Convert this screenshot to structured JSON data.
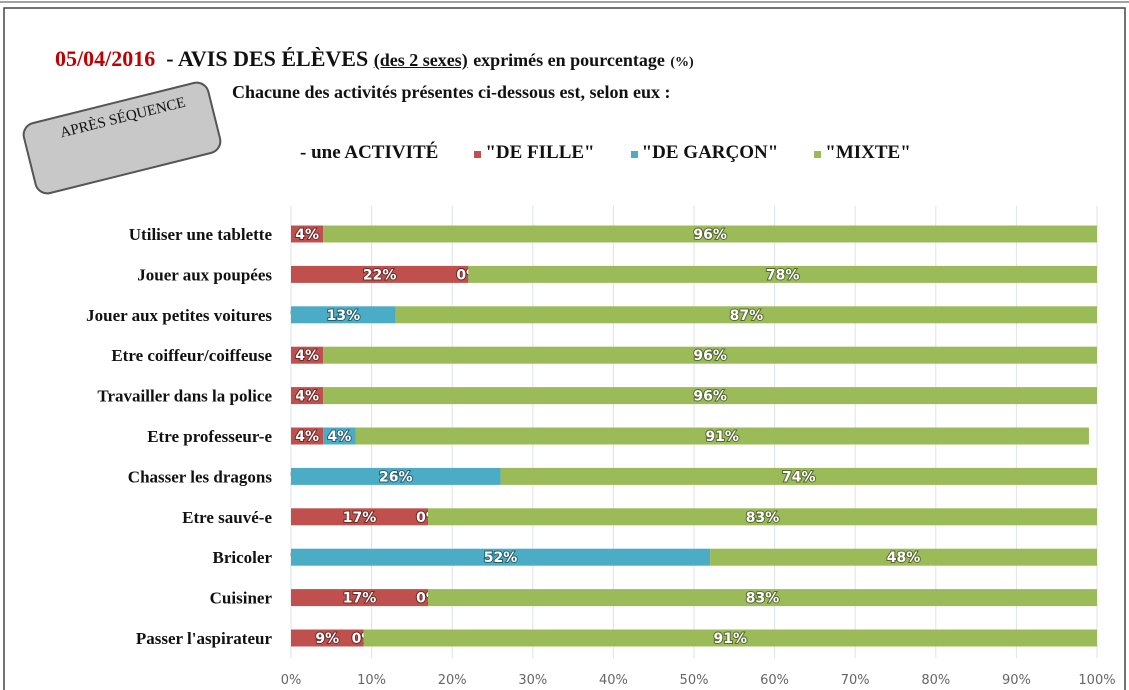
{
  "badge": "APRÈS SÉQUENCE",
  "chart_data": {
    "type": "stacked-barh",
    "title_date": "05/04/2016",
    "title": "- AVIS DES ÉLÈVES",
    "title_paren": "(des 2 sexes)",
    "title_rest": "exprimés en pourcentage",
    "title_unit": "(%)",
    "subtitle": "Chacune des activités présentes ci-dessous est, selon eux :",
    "legend_lead": "- une ACTIVITÉ",
    "categories": [
      "Utiliser une tablette",
      "Jouer aux poupées",
      "Jouer aux petites voitures",
      "Etre coiffeur/coiffeuse",
      "Travailler dans la police",
      "Etre professeur-e",
      "Chasser les dragons",
      "Etre sauvé-e",
      "Bricoler",
      "Cuisiner",
      "Passer l'aspirateur"
    ],
    "series": [
      {
        "name": "\"DE FILLE\"",
        "color": "#c0504d",
        "values": [
          4,
          22,
          0,
          4,
          4,
          4,
          0,
          17,
          0,
          17,
          9
        ],
        "value_labels": [
          "4%",
          "22%",
          "%",
          "4%",
          "4%",
          "4%",
          "%",
          "17%",
          "%",
          "17%",
          "9%"
        ]
      },
      {
        "name": "\"DE GARÇON\"",
        "color": "#4bacc6",
        "values": [
          0,
          0,
          13,
          0,
          0,
          4,
          26,
          0,
          52,
          0,
          0
        ],
        "value_labels": [
          null,
          "0%",
          "13%",
          null,
          null,
          "4%",
          "26%",
          "0%",
          "52%",
          "0%",
          "0%"
        ]
      },
      {
        "name": "\"MIXTE\"",
        "color": "#9bbb59",
        "values": [
          96,
          78,
          87,
          96,
          96,
          91,
          74,
          83,
          48,
          83,
          91
        ],
        "value_labels": [
          "96%",
          "78%",
          "87%",
          "96%",
          "96%",
          "91%",
          "74%",
          "83%",
          "48%",
          "83%",
          "91%"
        ]
      }
    ],
    "xlim": [
      0,
      100
    ],
    "xticks": [
      {
        "value": 0,
        "label": "0%"
      },
      {
        "value": 10,
        "label": "10%"
      },
      {
        "value": 20,
        "label": "20%"
      },
      {
        "value": 30,
        "label": "30%"
      },
      {
        "value": 40,
        "label": "40%"
      },
      {
        "value": 50,
        "label": "50%"
      },
      {
        "value": 60,
        "label": "60%"
      },
      {
        "value": 70,
        "label": "70%"
      },
      {
        "value": 80,
        "label": "80%"
      },
      {
        "value": 90,
        "label": "90%"
      },
      {
        "value": 100,
        "label": "100%"
      }
    ],
    "grid": true
  }
}
